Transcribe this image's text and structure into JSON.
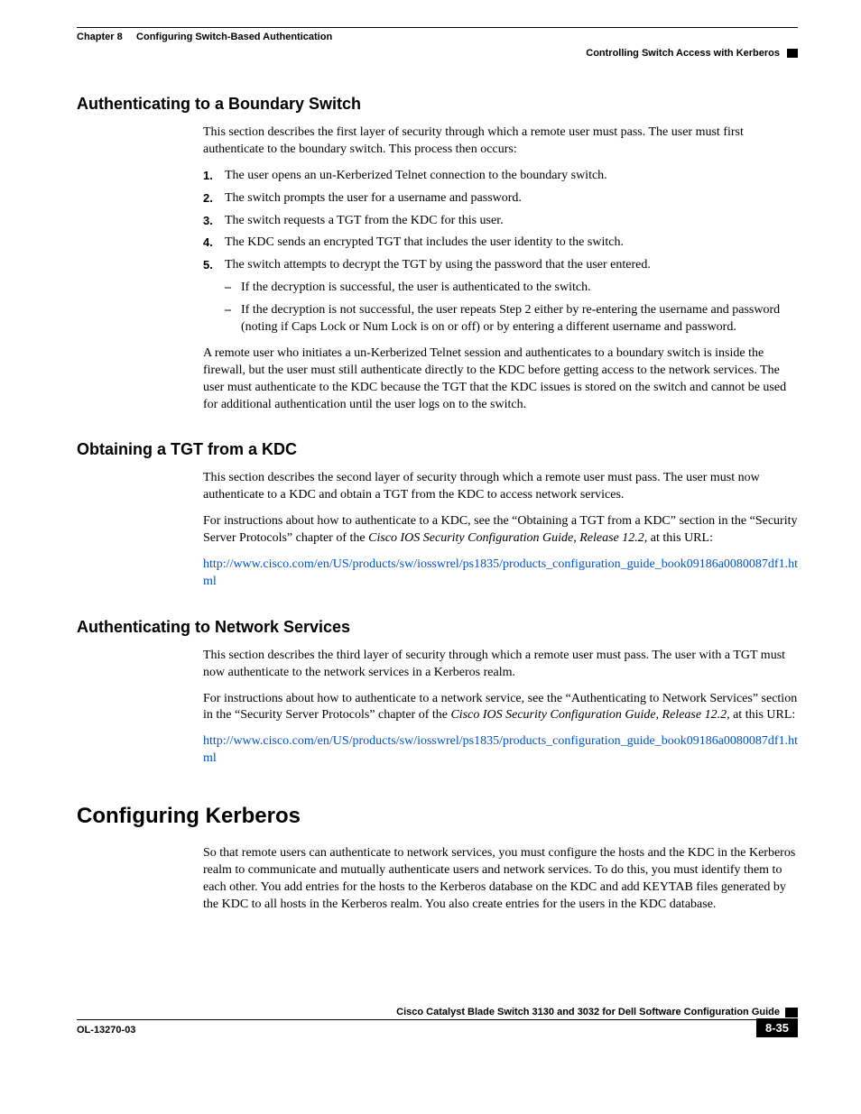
{
  "header": {
    "chapter_label": "Chapter 8",
    "chapter_title": "Configuring Switch-Based Authentication",
    "section_title": "Controlling Switch Access with Kerberos"
  },
  "sections": {
    "s1": {
      "title": "Authenticating to a Boundary Switch",
      "intro": "This section describes the first layer of security through which a remote user must pass. The user must first authenticate to the boundary switch. This process then occurs:",
      "steps": {
        "n1": "1.",
        "t1": "The user opens an un-Kerberized Telnet connection to the boundary switch.",
        "n2": "2.",
        "t2": "The switch prompts the user for a username and password.",
        "n3": "3.",
        "t3": "The switch requests a TGT from the KDC for this user.",
        "n4": "4.",
        "t4": "The KDC sends an encrypted TGT that includes the user identity to the switch.",
        "n5": "5.",
        "t5": "The switch attempts to decrypt the TGT by using the password that the user entered.",
        "sub1": "If the decryption is successful, the user is authenticated to the switch.",
        "sub2": "If the decryption is not successful, the user repeats Step 2 either by re-entering the username and password (noting if Caps Lock or Num Lock is on or off) or by entering a different username and password."
      },
      "outro": "A remote user who initiates a un-Kerberized Telnet session and authenticates to a boundary switch is inside the firewall, but the user must still authenticate directly to the KDC before getting access to the network services. The user must authenticate to the KDC because the TGT that the KDC issues is stored on the switch and cannot be used for additional authentication until the user logs on to the switch."
    },
    "s2": {
      "title": "Obtaining a TGT from a KDC",
      "p1": "This section describes the second layer of security through which a remote user must pass. The user must now authenticate to a KDC and obtain a TGT from the KDC to access network services.",
      "p2a": "For instructions about how to authenticate to a KDC, see the “Obtaining a TGT from a KDC” section in the “Security Server Protocols” chapter of the ",
      "p2_italic": "Cisco IOS Security Configuration Guide, Release 12.2,",
      "p2b": " at this URL:",
      "link": "http://www.cisco.com/en/US/products/sw/iosswrel/ps1835/products_configuration_guide_book09186a0080087df1.html"
    },
    "s3": {
      "title": "Authenticating to Network Services",
      "p1": "This section describes the third layer of security through which a remote user must pass. The user with a TGT must now authenticate to the network services in a Kerberos realm.",
      "p2a": "For instructions about how to authenticate to a network service, see the “Authenticating to Network Services” section in the “Security Server Protocols” chapter of the ",
      "p2_italic": "Cisco IOS Security Configuration Guide, Release 12.2,",
      "p2b": " at this URL:",
      "link": "http://www.cisco.com/en/US/products/sw/iosswrel/ps1835/products_configuration_guide_book09186a0080087df1.html"
    },
    "s4": {
      "title": "Configuring Kerberos",
      "p1": "So that remote users can authenticate to network services, you must configure the hosts and the KDC in the Kerberos realm to communicate and mutually authenticate users and network services. To do this, you must identify them to each other. You add entries for the hosts to the Kerberos database on the KDC and add KEYTAB files generated by the KDC to all hosts in the Kerberos realm. You also create entries for the users in the KDC database."
    }
  },
  "footer": {
    "book_title": "Cisco Catalyst Blade Switch 3130 and 3032 for Dell Software Configuration Guide",
    "doc_id": "OL-13270-03",
    "page_num": "8-35"
  },
  "colors": {
    "link": "#0052cc",
    "text": "#000000",
    "bg": "#ffffff"
  }
}
